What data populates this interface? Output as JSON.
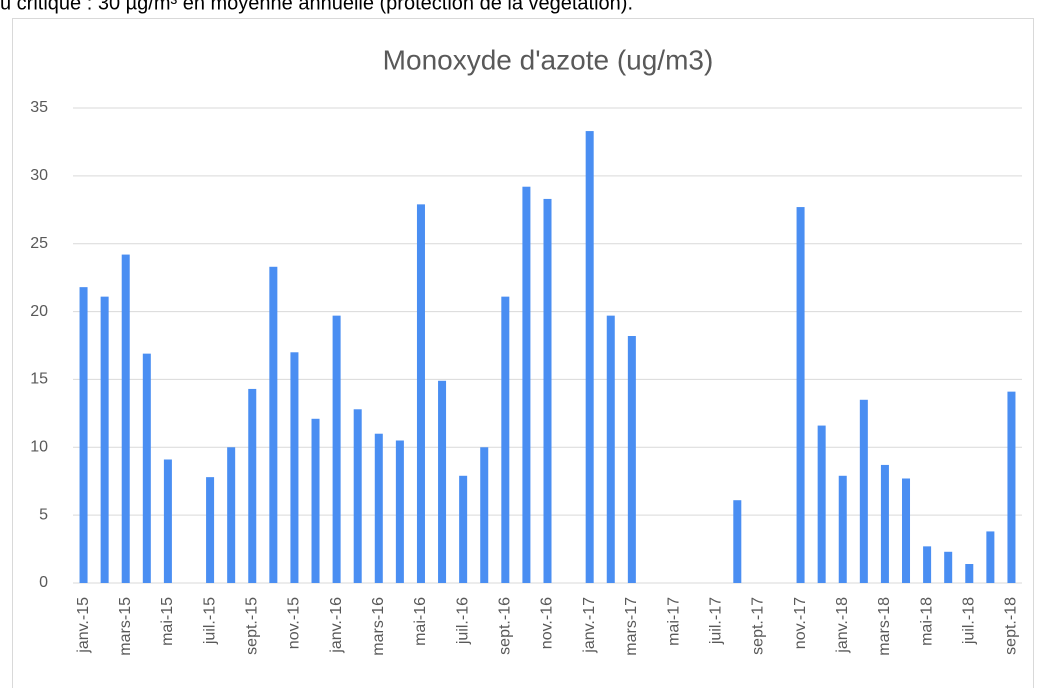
{
  "top_text": "u critique : 30 µg/m³ en moyenne annuelle (protection de la végétation).",
  "chart_data": {
    "type": "bar",
    "title": "Monoxyde d'azote (ug/m3)",
    "categories": [
      "janv.-15",
      null,
      "mars-15",
      null,
      "mai-15",
      null,
      "juil.-15",
      null,
      "sept.-15",
      null,
      "nov.-15",
      null,
      "janv.-16",
      null,
      "mars-16",
      null,
      "mai-16",
      null,
      "juil.-16",
      null,
      "sept.-16",
      null,
      "nov.-16",
      null,
      "janv.-17",
      null,
      "mars-17",
      null,
      "mai-17",
      null,
      "juil.-17",
      null,
      "sept.-17",
      null,
      "nov.-17",
      null,
      "janv.-18",
      null,
      "mars-18",
      null,
      "mai-18",
      null,
      "juil.-18",
      null,
      "sept.-18"
    ],
    "values": [
      21.8,
      21.1,
      24.2,
      16.9,
      9.1,
      null,
      7.8,
      10.0,
      14.3,
      23.3,
      17.0,
      12.1,
      19.7,
      12.8,
      11.0,
      10.5,
      27.9,
      14.9,
      7.9,
      10.0,
      21.1,
      29.2,
      28.3,
      null,
      33.3,
      19.7,
      18.2,
      null,
      null,
      null,
      null,
      6.1,
      null,
      null,
      27.7,
      11.6,
      7.9,
      13.5,
      8.7,
      7.7,
      2.7,
      2.3,
      1.4,
      3.8,
      14.1
    ],
    "color": "#4a8ef2",
    "ylim": [
      0,
      35
    ],
    "yticks": [
      0,
      5,
      10,
      15,
      20,
      25,
      30,
      35
    ],
    "grid": true
  }
}
